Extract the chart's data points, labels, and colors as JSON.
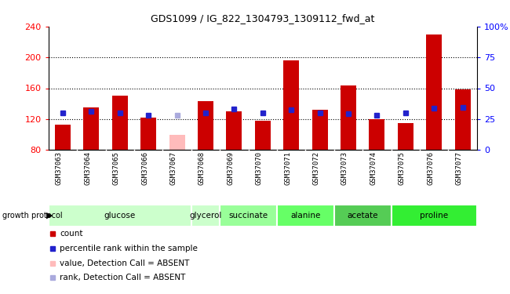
{
  "title": "GDS1099 / IG_822_1304793_1309112_fwd_at",
  "samples": [
    "GSM37063",
    "GSM37064",
    "GSM37065",
    "GSM37066",
    "GSM37067",
    "GSM37068",
    "GSM37069",
    "GSM37070",
    "GSM37071",
    "GSM37072",
    "GSM37073",
    "GSM37074",
    "GSM37075",
    "GSM37076",
    "GSM37077"
  ],
  "count_values": [
    113,
    135,
    150,
    122,
    null,
    143,
    130,
    118,
    196,
    132,
    164,
    120,
    115,
    230,
    158
  ],
  "rank_values": [
    128,
    130,
    128,
    125,
    null,
    128,
    133,
    128,
    132,
    128,
    127,
    125,
    128,
    134,
    135
  ],
  "absent_count": [
    null,
    null,
    null,
    null,
    100,
    null,
    null,
    null,
    null,
    null,
    null,
    null,
    null,
    null,
    null
  ],
  "absent_rank": [
    null,
    null,
    null,
    null,
    125,
    null,
    null,
    null,
    null,
    null,
    null,
    null,
    null,
    null,
    null
  ],
  "groups_def": [
    {
      "label": "glucose",
      "start": 0,
      "end": 4,
      "color": "#ccffcc"
    },
    {
      "label": "glycerol",
      "start": 5,
      "end": 5,
      "color": "#ccffcc"
    },
    {
      "label": "succinate",
      "start": 6,
      "end": 7,
      "color": "#99ff99"
    },
    {
      "label": "alanine",
      "start": 8,
      "end": 9,
      "color": "#66ff66"
    },
    {
      "label": "acetate",
      "start": 10,
      "end": 11,
      "color": "#55cc55"
    },
    {
      "label": "proline",
      "start": 12,
      "end": 14,
      "color": "#33ee33"
    }
  ],
  "ylim_left": [
    80,
    240
  ],
  "ylim_right": [
    0,
    100
  ],
  "bar_color_red": "#cc0000",
  "bar_color_absent": "#ffbbbb",
  "rank_color_blue": "#2222cc",
  "rank_color_absent": "#aaaadd",
  "bar_width": 0.55,
  "bg_label_row": "#cccccc",
  "legend_items": [
    {
      "color": "#cc0000",
      "label": "count"
    },
    {
      "color": "#2222cc",
      "label": "percentile rank within the sample"
    },
    {
      "color": "#ffbbbb",
      "label": "value, Detection Call = ABSENT"
    },
    {
      "color": "#aaaadd",
      "label": "rank, Detection Call = ABSENT"
    }
  ]
}
